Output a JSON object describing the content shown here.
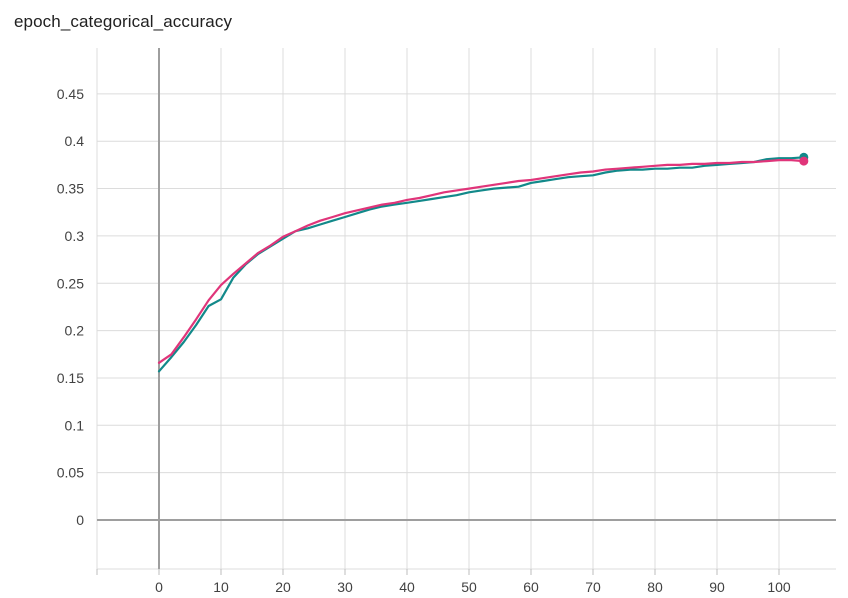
{
  "title": "epoch_categorical_accuracy",
  "chart_data": {
    "type": "line",
    "title": "epoch_categorical_accuracy",
    "xlabel": "",
    "ylabel": "",
    "xlim": [
      -10,
      109
    ],
    "ylim": [
      -0.052,
      0.5
    ],
    "grid": true,
    "legend": "none",
    "x_ticks": [
      {
        "value": 0,
        "label": "0"
      },
      {
        "value": 10,
        "label": "10"
      },
      {
        "value": 20,
        "label": "20"
      },
      {
        "value": 30,
        "label": "30"
      },
      {
        "value": 40,
        "label": "40"
      },
      {
        "value": 50,
        "label": "50"
      },
      {
        "value": 60,
        "label": "60"
      },
      {
        "value": 70,
        "label": "70"
      },
      {
        "value": 80,
        "label": "80"
      },
      {
        "value": 90,
        "label": "90"
      },
      {
        "value": 100,
        "label": "100"
      }
    ],
    "y_ticks": [
      {
        "value": 0,
        "label": "0"
      },
      {
        "value": 0.05,
        "label": "0.05"
      },
      {
        "value": 0.1,
        "label": "0.1"
      },
      {
        "value": 0.15,
        "label": "0.15"
      },
      {
        "value": 0.2,
        "label": "0.2"
      },
      {
        "value": 0.25,
        "label": "0.25"
      },
      {
        "value": 0.3,
        "label": "0.3"
      },
      {
        "value": 0.35,
        "label": "0.35"
      },
      {
        "value": 0.4,
        "label": "0.4"
      },
      {
        "value": 0.45,
        "label": "0.45"
      }
    ],
    "x": [
      0,
      2,
      4,
      6,
      8,
      10,
      12,
      14,
      16,
      18,
      20,
      22,
      24,
      26,
      28,
      30,
      32,
      34,
      36,
      38,
      40,
      42,
      44,
      46,
      48,
      50,
      52,
      54,
      56,
      58,
      60,
      62,
      64,
      66,
      68,
      70,
      72,
      74,
      76,
      78,
      80,
      82,
      84,
      86,
      88,
      90,
      92,
      94,
      96,
      98,
      100,
      102,
      104
    ],
    "series": [
      {
        "color": "#12898a",
        "values": [
          0.157,
          0.172,
          0.188,
          0.206,
          0.226,
          0.233,
          0.256,
          0.27,
          0.281,
          0.289,
          0.297,
          0.305,
          0.308,
          0.312,
          0.316,
          0.32,
          0.324,
          0.328,
          0.331,
          0.333,
          0.335,
          0.337,
          0.339,
          0.341,
          0.343,
          0.346,
          0.348,
          0.35,
          0.351,
          0.352,
          0.356,
          0.358,
          0.36,
          0.362,
          0.363,
          0.364,
          0.367,
          0.369,
          0.37,
          0.37,
          0.371,
          0.371,
          0.372,
          0.372,
          0.374,
          0.375,
          0.376,
          0.377,
          0.378,
          0.381,
          0.382,
          0.382,
          0.383
        ]
      },
      {
        "color": "#e0357a",
        "values": [
          0.166,
          0.175,
          0.193,
          0.212,
          0.232,
          0.248,
          0.26,
          0.271,
          0.282,
          0.29,
          0.299,
          0.305,
          0.311,
          0.316,
          0.32,
          0.324,
          0.327,
          0.33,
          0.333,
          0.335,
          0.338,
          0.34,
          0.343,
          0.346,
          0.348,
          0.35,
          0.352,
          0.354,
          0.356,
          0.358,
          0.359,
          0.361,
          0.363,
          0.365,
          0.367,
          0.368,
          0.37,
          0.371,
          0.372,
          0.373,
          0.374,
          0.375,
          0.375,
          0.376,
          0.376,
          0.377,
          0.377,
          0.378,
          0.378,
          0.379,
          0.38,
          0.38,
          0.379
        ]
      }
    ]
  }
}
